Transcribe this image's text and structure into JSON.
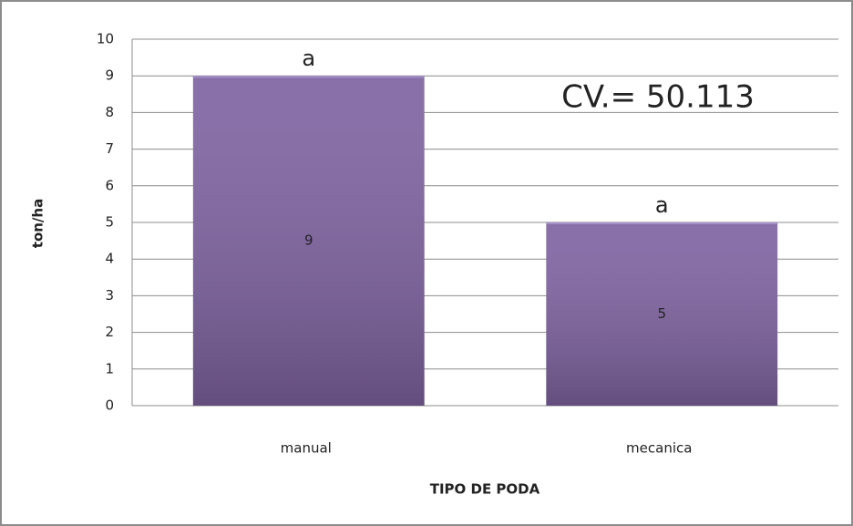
{
  "chart_data": {
    "type": "bar",
    "categories": [
      "manual",
      "mecanica"
    ],
    "values": [
      9,
      5
    ],
    "group_labels": [
      "a",
      "a"
    ],
    "annotation": "CV.= 50.113",
    "y_label": "ton/ha",
    "x_label": "TIPO DE PODA",
    "color": "#8064a2",
    "ylim": [
      0,
      10
    ],
    "yticks": [
      0,
      1,
      2,
      3,
      4,
      5,
      6,
      7,
      8,
      9,
      10
    ],
    "grid": true
  }
}
